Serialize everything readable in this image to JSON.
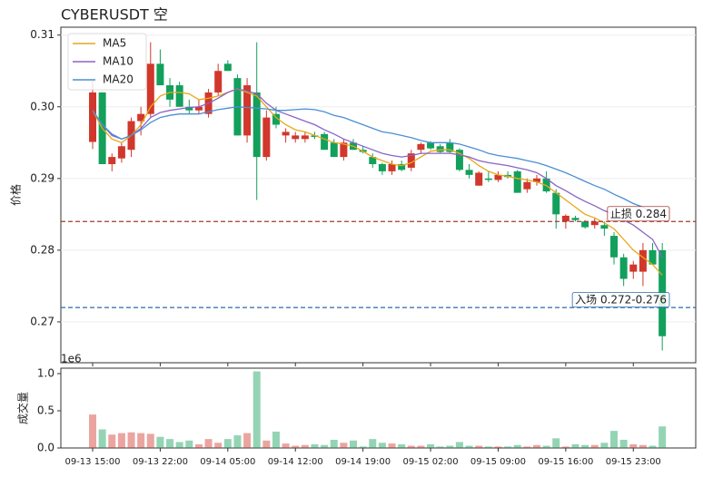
{
  "chart_data": [
    {
      "type": "candlestick",
      "title": "CYBERUSDT  空",
      "ylabel": "价格",
      "x": [
        "09-13 15:00",
        "09-13 16:00",
        "09-13 17:00",
        "09-13 18:00",
        "09-13 19:00",
        "09-13 20:00",
        "09-13 21:00",
        "09-13 22:00",
        "09-13 23:00",
        "09-14 00:00",
        "09-14 01:00",
        "09-14 02:00",
        "09-14 03:00",
        "09-14 04:00",
        "09-14 05:00",
        "09-14 06:00",
        "09-14 07:00",
        "09-14 08:00",
        "09-14 09:00",
        "09-14 10:00",
        "09-14 11:00",
        "09-14 12:00",
        "09-14 13:00",
        "09-14 14:00",
        "09-14 15:00",
        "09-14 16:00",
        "09-14 17:00",
        "09-14 18:00",
        "09-14 19:00",
        "09-14 20:00",
        "09-14 21:00",
        "09-14 22:00",
        "09-14 23:00",
        "09-15 00:00",
        "09-15 01:00",
        "09-15 02:00",
        "09-15 03:00",
        "09-15 04:00",
        "09-15 05:00",
        "09-15 06:00",
        "09-15 07:00",
        "09-15 08:00",
        "09-15 09:00",
        "09-15 10:00",
        "09-15 11:00",
        "09-15 12:00",
        "09-15 13:00",
        "09-15 14:00",
        "09-15 15:00",
        "09-15 16:00",
        "09-15 17:00",
        "09-15 18:00",
        "09-15 19:00",
        "09-15 20:00",
        "09-15 21:00",
        "09-15 22:00",
        "09-15 23:00",
        "09-16 00:00",
        "09-16 01:00",
        "09-16 02:00"
      ],
      "open": [
        0.2951,
        0.302,
        0.292,
        0.2928,
        0.294,
        0.298,
        0.299,
        0.306,
        0.303,
        0.303,
        0.3,
        0.2995,
        0.299,
        0.302,
        0.306,
        0.304,
        0.296,
        0.302,
        0.293,
        0.299,
        0.296,
        0.2955,
        0.2955,
        0.296,
        0.2962,
        0.295,
        0.293,
        0.295,
        0.294,
        0.293,
        0.292,
        0.291,
        0.292,
        0.2915,
        0.294,
        0.295,
        0.2945,
        0.295,
        0.294,
        0.2912,
        0.289,
        0.29,
        0.2898,
        0.2905,
        0.291,
        0.2885,
        0.2895,
        0.29,
        0.288,
        0.284,
        0.2845,
        0.284,
        0.2835,
        0.2835,
        0.282,
        0.279,
        0.277,
        0.277,
        0.28,
        0.28
      ],
      "high": [
        0.3038,
        0.302,
        0.2935,
        0.295,
        0.2985,
        0.3,
        0.309,
        0.308,
        0.304,
        0.3035,
        0.301,
        0.301,
        0.3025,
        0.306,
        0.3065,
        0.3045,
        0.304,
        0.309,
        0.2995,
        0.3,
        0.297,
        0.2965,
        0.2965,
        0.2965,
        0.2965,
        0.2955,
        0.2955,
        0.2955,
        0.2945,
        0.2935,
        0.2922,
        0.2925,
        0.2925,
        0.294,
        0.295,
        0.2952,
        0.2948,
        0.2955,
        0.2942,
        0.292,
        0.291,
        0.291,
        0.291,
        0.291,
        0.2912,
        0.29,
        0.2905,
        0.291,
        0.2885,
        0.285,
        0.2848,
        0.2842,
        0.2845,
        0.284,
        0.2825,
        0.2795,
        0.2785,
        0.281,
        0.281,
        0.281
      ],
      "low": [
        0.2941,
        0.292,
        0.291,
        0.2922,
        0.293,
        0.296,
        0.2985,
        0.303,
        0.3,
        0.3,
        0.299,
        0.299,
        0.2985,
        0.3015,
        0.305,
        0.296,
        0.295,
        0.287,
        0.2925,
        0.297,
        0.295,
        0.295,
        0.295,
        0.2955,
        0.294,
        0.293,
        0.2925,
        0.294,
        0.2935,
        0.2915,
        0.2905,
        0.2905,
        0.291,
        0.291,
        0.2935,
        0.294,
        0.2935,
        0.2935,
        0.291,
        0.29,
        0.289,
        0.2895,
        0.2895,
        0.29,
        0.288,
        0.288,
        0.289,
        0.288,
        0.283,
        0.283,
        0.284,
        0.283,
        0.283,
        0.282,
        0.278,
        0.275,
        0.276,
        0.275,
        0.278,
        0.266
      ],
      "close": [
        0.302,
        0.292,
        0.293,
        0.2945,
        0.298,
        0.299,
        0.306,
        0.303,
        0.301,
        0.3,
        0.2995,
        0.3,
        0.302,
        0.305,
        0.305,
        0.296,
        0.303,
        0.293,
        0.2985,
        0.2975,
        0.2965,
        0.296,
        0.296,
        0.2958,
        0.294,
        0.293,
        0.295,
        0.294,
        0.2937,
        0.292,
        0.291,
        0.292,
        0.2912,
        0.2935,
        0.2948,
        0.2942,
        0.2937,
        0.2937,
        0.2912,
        0.2905,
        0.2908,
        0.2898,
        0.2905,
        0.2902,
        0.288,
        0.2895,
        0.29,
        0.2882,
        0.285,
        0.2848,
        0.2842,
        0.2832,
        0.284,
        0.283,
        0.279,
        0.276,
        0.278,
        0.28,
        0.278,
        0.268
      ],
      "up_color": "#d1372c",
      "down_color": "#12a05c",
      "series": [
        {
          "name": "MA5",
          "color": "#e6a817",
          "values": [
            0.2995,
            0.297,
            0.2955,
            0.295,
            0.296,
            0.2975,
            0.3,
            0.3015,
            0.302,
            0.302,
            0.3018,
            0.301,
            0.3012,
            0.3015,
            0.302,
            0.3025,
            0.302,
            0.3015,
            0.3,
            0.2985,
            0.2975,
            0.2968,
            0.2965,
            0.296,
            0.2955,
            0.295,
            0.2948,
            0.2945,
            0.2938,
            0.293,
            0.2925,
            0.292,
            0.2918,
            0.2922,
            0.293,
            0.2938,
            0.294,
            0.294,
            0.2935,
            0.2928,
            0.2918,
            0.291,
            0.2905,
            0.2903,
            0.29,
            0.2898,
            0.2895,
            0.289,
            0.288,
            0.287,
            0.286,
            0.285,
            0.2845,
            0.2838,
            0.283,
            0.2815,
            0.28,
            0.279,
            0.278,
            0.2765
          ]
        },
        {
          "name": "MA10",
          "color": "#8a63c5",
          "values": [
            0.2995,
            0.2975,
            0.296,
            0.2955,
            0.296,
            0.297,
            0.2985,
            0.2992,
            0.2995,
            0.2997,
            0.2999,
            0.3,
            0.3005,
            0.3012,
            0.302,
            0.3025,
            0.3022,
            0.3018,
            0.3005,
            0.2995,
            0.299,
            0.2985,
            0.298,
            0.2975,
            0.2968,
            0.2962,
            0.2955,
            0.295,
            0.2945,
            0.294,
            0.2935,
            0.2932,
            0.293,
            0.2932,
            0.2935,
            0.2935,
            0.2935,
            0.2935,
            0.2933,
            0.293,
            0.2925,
            0.2922,
            0.292,
            0.2918,
            0.2915,
            0.2912,
            0.2908,
            0.29,
            0.289,
            0.2883,
            0.2875,
            0.2868,
            0.2862,
            0.2855,
            0.285,
            0.2842,
            0.2835,
            0.2825,
            0.2815,
            0.279
          ]
        },
        {
          "name": "MA20",
          "color": "#4a8fd4",
          "values": [
            0.2995,
            0.2975,
            0.2962,
            0.2955,
            0.296,
            0.2968,
            0.2978,
            0.2985,
            0.2988,
            0.299,
            0.299,
            0.299,
            0.2993,
            0.2996,
            0.2998,
            0.3,
            0.2999,
            0.2998,
            0.2997,
            0.2995,
            0.2995,
            0.2996,
            0.2997,
            0.2996,
            0.2993,
            0.2988,
            0.2985,
            0.298,
            0.2975,
            0.297,
            0.2965,
            0.2963,
            0.296,
            0.2957,
            0.2953,
            0.295,
            0.295,
            0.295,
            0.2948,
            0.2944,
            0.294,
            0.2935,
            0.2932,
            0.293,
            0.2928,
            0.2925,
            0.2922,
            0.2918,
            0.2913,
            0.2908,
            0.2902,
            0.2896,
            0.289,
            0.2885,
            0.2878,
            0.2872,
            0.2865,
            0.286,
            0.2852,
            0.2845
          ]
        }
      ],
      "hlines": [
        {
          "value": 0.284,
          "label": "止损 0.284",
          "color": "#a33a32"
        },
        {
          "value": 0.272,
          "label": "入场 0.272-0.276",
          "color": "#2a6aa8"
        }
      ],
      "ylim": [
        0.2643,
        0.3111
      ],
      "yticks": [
        0.27,
        0.28,
        0.29,
        {
          "value": 0.3,
          "label": "0.30"
        },
        0.31
      ],
      "grid": true,
      "legend": "upper left"
    },
    {
      "type": "bar",
      "ylabel": "成交量",
      "offset_label": "1e6",
      "values": [
        0.45,
        0.25,
        0.18,
        0.2,
        0.21,
        0.2,
        0.19,
        0.15,
        0.12,
        0.08,
        0.1,
        0.05,
        0.12,
        0.07,
        0.12,
        0.17,
        0.2,
        1.03,
        0.1,
        0.22,
        0.06,
        0.03,
        0.04,
        0.05,
        0.04,
        0.11,
        0.07,
        0.1,
        0.02,
        0.12,
        0.07,
        0.06,
        0.05,
        0.03,
        0.03,
        0.05,
        0.02,
        0.03,
        0.08,
        0.03,
        0.03,
        0.02,
        0.02,
        0.02,
        0.04,
        0.02,
        0.04,
        0.03,
        0.13,
        0.02,
        0.05,
        0.04,
        0.04,
        0.07,
        0.23,
        0.11,
        0.05,
        0.04,
        0.03,
        0.29
      ],
      "ylim": [
        0,
        1.073
      ],
      "yticks": [
        {
          "value": 0,
          "label": "0.0"
        },
        0.5,
        {
          "value": 1,
          "label": "1.0"
        }
      ],
      "xticks": [
        "09-13 15:00",
        "09-13 22:00",
        "09-14 05:00",
        "09-14 12:00",
        "09-14 19:00",
        "09-15 02:00",
        "09-15 09:00",
        "09-15 16:00",
        "09-15 23:00"
      ]
    }
  ]
}
